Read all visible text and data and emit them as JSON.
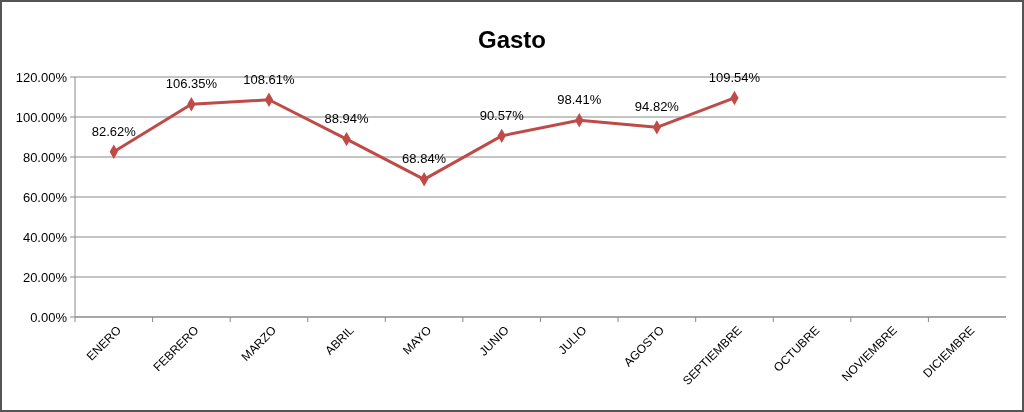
{
  "chart_data": {
    "type": "line",
    "title": "Gasto",
    "categories": [
      "ENERO",
      "FEBRERO",
      "MARZO",
      "ABRIL",
      "MAYO",
      "JUNIO",
      "JULIO",
      "AGOSTO",
      "SEPTIEMBRE",
      "OCTUBRE",
      "NOVIEMBRE",
      "DICIEMBRE"
    ],
    "series": [
      {
        "color": "#be4b48",
        "values": [
          82.62,
          106.35,
          108.61,
          88.94,
          68.84,
          90.57,
          98.41,
          94.82,
          109.54,
          null,
          null,
          null
        ],
        "value_labels": [
          "82.62%",
          "106.35%",
          "108.61%",
          "88.94%",
          "68.84%",
          "90.57%",
          "98.41%",
          "94.82%",
          "109.54%",
          null,
          null,
          null
        ]
      }
    ],
    "ylim": [
      0,
      120
    ],
    "yticks": [
      {
        "value": 0,
        "label": "0.00%"
      },
      {
        "value": 20,
        "label": "20.00%"
      },
      {
        "value": 40,
        "label": "40.00%"
      },
      {
        "value": 60,
        "label": "60.00%"
      },
      {
        "value": 80,
        "label": "80.00%"
      },
      {
        "value": 100,
        "label": "100.00%"
      },
      {
        "value": 120,
        "label": "120.00%"
      }
    ],
    "grid": "y",
    "marker": "diamond",
    "line_style": "solid"
  }
}
